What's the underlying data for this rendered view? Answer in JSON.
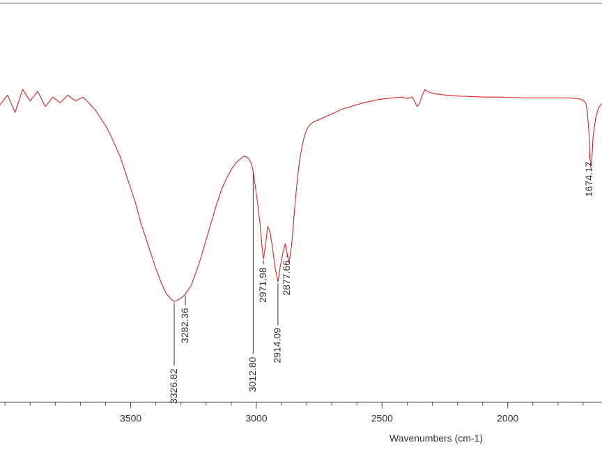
{
  "chart_data": {
    "type": "line",
    "xlabel": "Wavenumbers (cm-1)",
    "ylabel": "",
    "x_reversed": true,
    "xlim": [
      4020,
      1625
    ],
    "ylim": [
      0,
      100
    ],
    "x_ticks": [
      "3500",
      "3000",
      "2500",
      "2000"
    ],
    "x_tick_values": [
      3500,
      3000,
      2500,
      2000
    ],
    "line_color": "#e02020",
    "text_color": "#333333",
    "grid": false,
    "series": [
      {
        "name": "",
        "x": [
          4020,
          3990,
          3960,
          3930,
          3900,
          3870,
          3840,
          3810,
          3780,
          3750,
          3720,
          3690,
          3660,
          3640,
          3620,
          3600,
          3580,
          3560,
          3540,
          3520,
          3500,
          3480,
          3460,
          3440,
          3420,
          3400,
          3380,
          3360,
          3340,
          3326.82,
          3310,
          3295,
          3282.36,
          3260,
          3240,
          3220,
          3200,
          3180,
          3160,
          3140,
          3120,
          3100,
          3080,
          3060,
          3050,
          3040,
          3030,
          3020,
          3012.8,
          3005,
          2995,
          2985,
          2978,
          2971.98,
          2965,
          2955,
          2945,
          2935,
          2925,
          2914.09,
          2905,
          2895,
          2885,
          2877.66,
          2870,
          2860,
          2850,
          2840,
          2830,
          2820,
          2810,
          2800,
          2790,
          2780,
          2760,
          2740,
          2720,
          2700,
          2680,
          2660,
          2640,
          2620,
          2600,
          2580,
          2560,
          2540,
          2520,
          2500,
          2480,
          2460,
          2440,
          2420,
          2400,
          2380,
          2370,
          2360,
          2350,
          2340,
          2330,
          2320,
          2300,
          2280,
          2260,
          2240,
          2220,
          2200,
          2180,
          2160,
          2140,
          2120,
          2100,
          2080,
          2060,
          2040,
          2020,
          2000,
          1980,
          1960,
          1940,
          1920,
          1900,
          1880,
          1860,
          1840,
          1820,
          1800,
          1780,
          1760,
          1740,
          1720,
          1700,
          1690,
          1684,
          1678,
          1674.17,
          1670,
          1665,
          1660,
          1650,
          1640,
          1630,
          1625
        ],
        "y": [
          78.0,
          80.5,
          76.0,
          82.0,
          79.0,
          81.5,
          77.5,
          80.0,
          78.5,
          80.5,
          79.0,
          80.0,
          78.0,
          76.5,
          74.5,
          72.5,
          70.0,
          67.0,
          64.0,
          60.0,
          56.0,
          52.0,
          47.0,
          43.0,
          39.0,
          35.0,
          31.5,
          28.5,
          27.0,
          26.3,
          26.8,
          27.5,
          28.3,
          30.5,
          34.0,
          38.0,
          42.5,
          47.0,
          51.5,
          55.5,
          58.5,
          61.0,
          62.8,
          64.0,
          64.5,
          64.3,
          63.8,
          62.5,
          60.5,
          57.0,
          52.0,
          46.5,
          41.0,
          37.5,
          40.5,
          46.0,
          44.5,
          40.0,
          35.0,
          31.5,
          35.5,
          39.0,
          41.5,
          39.0,
          36.5,
          41.0,
          49.0,
          56.5,
          62.5,
          66.5,
          69.5,
          71.5,
          72.5,
          73.2,
          73.8,
          74.4,
          75.0,
          75.6,
          76.2,
          76.8,
          77.2,
          77.6,
          78.0,
          78.4,
          78.7,
          79.0,
          79.3,
          79.5,
          79.6,
          79.8,
          79.9,
          80.0,
          79.6,
          80.0,
          78.8,
          77.5,
          78.5,
          80.5,
          82.0,
          81.5,
          81.0,
          80.8,
          80.6,
          80.5,
          80.4,
          80.3,
          80.2,
          80.2,
          80.1,
          80.1,
          80.0,
          80.0,
          80.0,
          80.0,
          80.0,
          79.9,
          79.9,
          79.9,
          79.8,
          79.8,
          79.8,
          79.8,
          79.8,
          79.8,
          79.8,
          79.8,
          79.8,
          79.8,
          79.7,
          79.6,
          79.2,
          78.5,
          76.5,
          72.0,
          66.0,
          61.5,
          64.0,
          70.0,
          74.5,
          77.0,
          78.0,
          78.3
        ]
      }
    ],
    "peaks": [
      {
        "x": 3326.82,
        "label": "3326.82"
      },
      {
        "x": 3282.36,
        "label": "3282.36"
      },
      {
        "x": 3012.8,
        "label": "3012.80"
      },
      {
        "x": 2971.98,
        "label": "2971.98"
      },
      {
        "x": 2914.09,
        "label": "2914.09"
      },
      {
        "x": 2877.66,
        "label": "2877.66"
      },
      {
        "x": 1674.17,
        "label": "1674.17"
      }
    ]
  }
}
